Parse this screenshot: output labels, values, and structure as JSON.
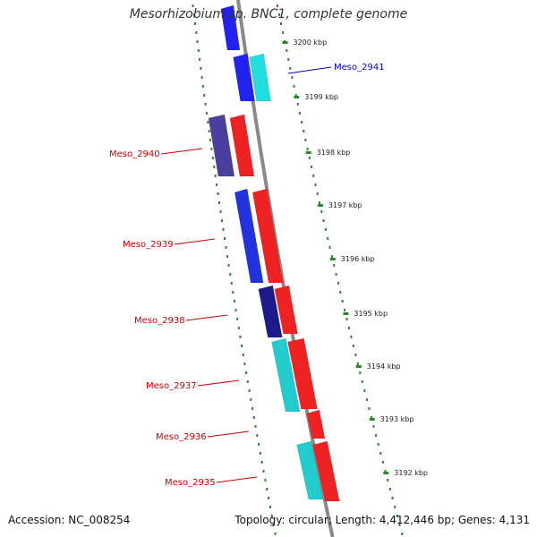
{
  "title": "Mesorhizobium sp. BNC1, complete genome",
  "footer": {
    "accession": "Accession: NC_008254",
    "info": "Topology: circular; Length: 4,412,446 bp; Genes: 4,131"
  },
  "colors": {
    "backbone": "#8a8a8a",
    "tick": "#2a8a2a",
    "label_red": "#cc0000",
    "label_blue": "#0000cc"
  },
  "ticks": [
    {
      "label": "3200 kbp",
      "kbp": 3200
    },
    {
      "label": "3199 kbp",
      "kbp": 3199
    },
    {
      "label": "3198 kbp",
      "kbp": 3198
    },
    {
      "label": "3197 kbp",
      "kbp": 3197
    },
    {
      "label": "3196 kbp",
      "kbp": 3196
    },
    {
      "label": "3195 kbp",
      "kbp": 3195
    },
    {
      "label": "3194 kbp",
      "kbp": 3194
    },
    {
      "label": "3193 kbp",
      "kbp": 3193
    },
    {
      "label": "3192 kbp",
      "kbp": 3192
    }
  ],
  "gene_labels": [
    {
      "name": "Meso_2941",
      "color": "blue"
    },
    {
      "name": "Meso_2940",
      "color": "red"
    },
    {
      "name": "Meso_2939",
      "color": "red"
    },
    {
      "name": "Meso_2938",
      "color": "red"
    },
    {
      "name": "Meso_2937",
      "color": "red"
    },
    {
      "name": "Meso_2936",
      "color": "red"
    },
    {
      "name": "Meso_2935",
      "color": "red"
    }
  ],
  "blocks": [
    {
      "color": "#2222ee",
      "strand": "inner"
    },
    {
      "color": "#2222ee",
      "strand": "inner"
    },
    {
      "color": "#22dddd",
      "strand": "inner"
    },
    {
      "color": "#4a3fa0",
      "strand": "inner"
    },
    {
      "color": "#ee2222",
      "strand": "outer"
    },
    {
      "color": "#2233dd",
      "strand": "inner"
    },
    {
      "color": "#ee2222",
      "strand": "outer"
    },
    {
      "color": "#1a1a88",
      "strand": "inner"
    },
    {
      "color": "#ee2222",
      "strand": "outer"
    },
    {
      "color": "#22cccc",
      "strand": "inner"
    },
    {
      "color": "#ee2222",
      "strand": "outer"
    },
    {
      "color": "#ee2222",
      "strand": "outer"
    },
    {
      "color": "#22cccc",
      "strand": "inner"
    },
    {
      "color": "#ee2222",
      "strand": "outer"
    }
  ]
}
